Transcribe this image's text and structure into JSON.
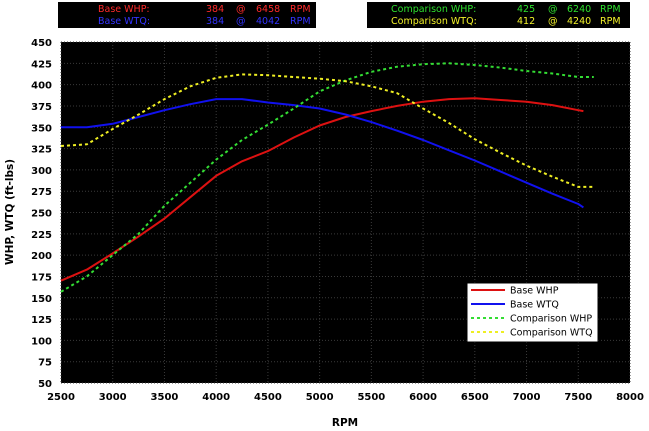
{
  "peaks": {
    "base": [
      {
        "label": "Base WHP:",
        "value": "384",
        "at": "@",
        "rpm": "6458",
        "unit": "RPM",
        "color": "#ff2a2a"
      },
      {
        "label": "Base WTQ:",
        "value": "384",
        "at": "@",
        "rpm": "4042",
        "unit": "RPM",
        "color": "#3333ff"
      }
    ],
    "comparison": [
      {
        "label": "Comparison WHP:",
        "value": "425",
        "at": "@",
        "rpm": "6240",
        "unit": "RPM",
        "color": "#2ee02e"
      },
      {
        "label": "Comparison WTQ:",
        "value": "412",
        "at": "@",
        "rpm": "4240",
        "unit": "RPM",
        "color": "#f2f22a"
      }
    ]
  },
  "chart_data": {
    "type": "line",
    "xlabel": "RPM",
    "ylabel": "WHP, WTQ (ft-lbs)",
    "xlim": [
      2500,
      8000
    ],
    "ylim": [
      50,
      450
    ],
    "xticks": [
      2500,
      3000,
      3500,
      4000,
      4500,
      5000,
      5500,
      6000,
      6500,
      7000,
      7500,
      8000
    ],
    "yticks": [
      50,
      75,
      100,
      125,
      150,
      175,
      200,
      225,
      250,
      275,
      300,
      325,
      350,
      375,
      400,
      425,
      450
    ],
    "grid": true,
    "background": "#000000",
    "legend_position": "lower-right",
    "series": [
      {
        "name": "Base WHP",
        "color": "#dd1111",
        "style": "solid",
        "x": [
          2500,
          2750,
          3000,
          3250,
          3500,
          3750,
          4000,
          4250,
          4500,
          4750,
          5000,
          5250,
          5500,
          5750,
          6000,
          6250,
          6500,
          6750,
          7000,
          7250,
          7500,
          7550
        ],
        "y": [
          170,
          183,
          202,
          222,
          243,
          268,
          293,
          310,
          322,
          338,
          352,
          362,
          369,
          375,
          380,
          383,
          384,
          382,
          380,
          376,
          370,
          369
        ]
      },
      {
        "name": "Base WTQ",
        "color": "#1111ee",
        "style": "solid",
        "x": [
          2500,
          2750,
          3000,
          3250,
          3500,
          3750,
          4000,
          4250,
          4500,
          4750,
          5000,
          5250,
          5500,
          5750,
          6000,
          6250,
          6500,
          6750,
          7000,
          7250,
          7500,
          7550
        ],
        "y": [
          350,
          350,
          354,
          362,
          370,
          377,
          383,
          383,
          379,
          376,
          372,
          365,
          356,
          346,
          335,
          323,
          311,
          298,
          285,
          272,
          260,
          256
        ]
      },
      {
        "name": "Comparison WHP",
        "color": "#33dd33",
        "style": "dashed",
        "x": [
          2500,
          2750,
          3000,
          3250,
          3500,
          3750,
          4000,
          4250,
          4500,
          4750,
          5000,
          5250,
          5500,
          5750,
          6000,
          6250,
          6500,
          6750,
          7000,
          7250,
          7500,
          7650
        ],
        "y": [
          157,
          175,
          200,
          225,
          258,
          285,
          312,
          335,
          353,
          372,
          392,
          405,
          415,
          421,
          424,
          425,
          423,
          420,
          416,
          413,
          409,
          409
        ]
      },
      {
        "name": "Comparison WTQ",
        "color": "#eeee22",
        "style": "dashed",
        "x": [
          2500,
          2750,
          3000,
          3250,
          3500,
          3750,
          4000,
          4250,
          4500,
          4750,
          5000,
          5250,
          5500,
          5750,
          6000,
          6250,
          6500,
          6750,
          7000,
          7250,
          7500,
          7650
        ],
        "y": [
          328,
          330,
          348,
          365,
          383,
          398,
          408,
          412,
          411,
          409,
          407,
          404,
          398,
          390,
          372,
          355,
          336,
          320,
          305,
          292,
          280,
          280
        ]
      }
    ]
  }
}
